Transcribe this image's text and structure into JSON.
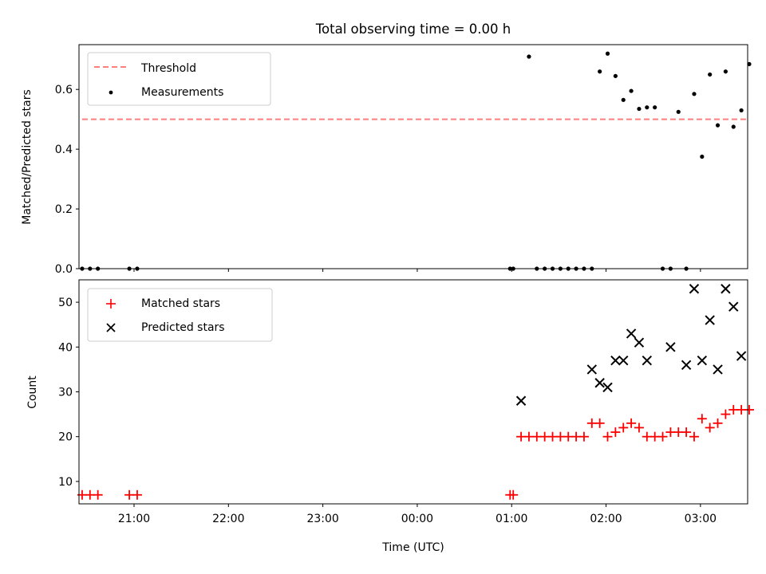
{
  "title": "Total observing time = 0.00 h",
  "chart_data": [
    {
      "type": "scatter",
      "ylabel": "Matched/Predicted stars",
      "ylim": [
        0,
        0.75
      ],
      "yticks": [
        0.0,
        0.2,
        0.4,
        0.6
      ],
      "ytick_labels": [
        "0.0",
        "0.2",
        "0.4",
        "0.6"
      ],
      "threshold": {
        "name": "Threshold",
        "value": 0.5,
        "x_start": "20:27",
        "x_end": "03:29",
        "color": "#ff7f7f",
        "style": "dashed"
      },
      "series": [
        {
          "name": "Measurements",
          "marker": "dot",
          "color": "#000000",
          "x": [
            "20:27",
            "20:32",
            "20:37",
            "20:57",
            "21:02",
            "00:59",
            "01:01",
            "01:11",
            "01:16",
            "01:21",
            "01:26",
            "01:31",
            "01:36",
            "01:41",
            "01:46",
            "01:51",
            "01:56",
            "02:01",
            "02:06",
            "02:11",
            "02:16",
            "02:21",
            "02:26",
            "02:31",
            "02:36",
            "02:41",
            "02:46",
            "02:51",
            "02:56",
            "03:01",
            "03:06",
            "03:11",
            "03:16",
            "03:21",
            "03:26",
            "03:31"
          ],
          "y": [
            0,
            0,
            0,
            0,
            0,
            0,
            0,
            0.71,
            0,
            0,
            0,
            0,
            0,
            0,
            0,
            0,
            0.66,
            0.72,
            0.645,
            0.565,
            0.595,
            0.535,
            0.54,
            0.54,
            0,
            0,
            0.525,
            0,
            0.585,
            0.375,
            0.65,
            0.48,
            0.66,
            0.475,
            0.53,
            0.685
          ]
        }
      ],
      "legend": "top-left"
    },
    {
      "type": "scatter",
      "xlabel": "Time (UTC)",
      "ylabel": "Count",
      "ylim": [
        5,
        55
      ],
      "yticks": [
        10,
        20,
        30,
        40,
        50
      ],
      "xtick_labels": [
        "21:00",
        "22:00",
        "23:00",
        "00:00",
        "01:00",
        "02:00",
        "03:00"
      ],
      "series": [
        {
          "name": "Matched stars",
          "marker": "plus",
          "color": "#ff0000",
          "x": [
            "20:27",
            "20:32",
            "20:37",
            "20:57",
            "21:02",
            "00:59",
            "01:01",
            "01:06",
            "01:11",
            "01:16",
            "01:21",
            "01:26",
            "01:31",
            "01:36",
            "01:41",
            "01:46",
            "01:51",
            "01:56",
            "02:01",
            "02:06",
            "02:11",
            "02:16",
            "02:21",
            "02:26",
            "02:31",
            "02:36",
            "02:41",
            "02:46",
            "02:51",
            "02:56",
            "03:01",
            "03:06",
            "03:11",
            "03:16",
            "03:21",
            "03:26",
            "03:31"
          ],
          "y": [
            7,
            7,
            7,
            7,
            7,
            7,
            7,
            20,
            20,
            20,
            20,
            20,
            20,
            20,
            20,
            20,
            23,
            23,
            20,
            21,
            22,
            23,
            22,
            20,
            20,
            20,
            21,
            21,
            21,
            20,
            24,
            22,
            23,
            25,
            26,
            26,
            26
          ]
        },
        {
          "name": "Predicted stars",
          "marker": "x",
          "color": "#000000",
          "x": [
            "01:06",
            "01:51",
            "01:56",
            "02:01",
            "02:06",
            "02:11",
            "02:16",
            "02:21",
            "02:26",
            "02:41",
            "02:51",
            "02:56",
            "03:01",
            "03:06",
            "03:11",
            "03:16",
            "03:21",
            "03:26"
          ],
          "y": [
            28,
            35,
            32,
            31,
            37,
            37,
            43,
            41,
            37,
            40,
            36,
            53,
            37,
            46,
            35,
            53,
            49,
            38
          ]
        }
      ],
      "legend": "top-left"
    }
  ]
}
